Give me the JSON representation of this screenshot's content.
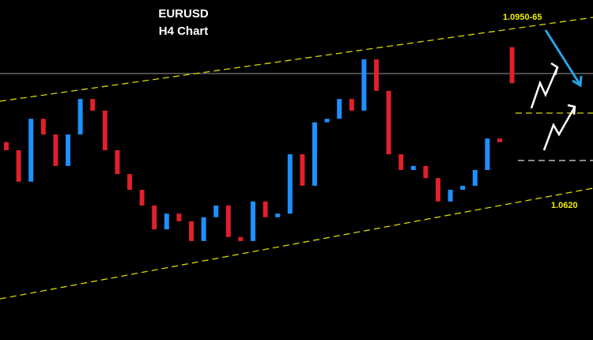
{
  "chart_data": {
    "type": "candlestick",
    "title": "EURUSD",
    "subtitle": "H4 Chart",
    "annotations": [
      "1.0950-65",
      "1.0620"
    ],
    "open": [
      1.0717,
      1.0701,
      1.0639,
      1.0763,
      1.0732,
      1.067,
      1.0732,
      1.0802,
      1.0779,
      1.0701,
      1.0654,
      1.0623,
      1.0592,
      1.0545,
      1.0576,
      1.0561,
      1.0522,
      1.0569,
      1.0592,
      1.053,
      1.0522,
      1.06,
      1.0569,
      1.0576,
      1.0693,
      1.0631,
      1.0756,
      1.0763,
      1.0802,
      1.0779,
      1.088,
      1.0818,
      1.0693,
      1.0662,
      1.067,
      1.0646,
      1.06,
      1.0623,
      1.0631,
      1.0662,
      1.0724,
      1.0904
    ],
    "close": [
      1.0701,
      1.0639,
      1.0763,
      1.0732,
      1.067,
      1.0732,
      1.0802,
      1.0779,
      1.0701,
      1.0654,
      1.0623,
      1.0592,
      1.0545,
      1.0576,
      1.0561,
      1.0522,
      1.0569,
      1.0592,
      1.053,
      1.0522,
      1.06,
      1.0569,
      1.0576,
      1.0693,
      1.0631,
      1.0756,
      1.0763,
      1.0802,
      1.0779,
      1.088,
      1.0818,
      1.0693,
      1.0662,
      1.067,
      1.0646,
      1.06,
      1.0623,
      1.0631,
      1.0662,
      1.0724,
      1.0717,
      1.0833
    ],
    "up_color": "#1e90ff",
    "down_color": "#e0202a",
    "ylim": [
      1.0327,
      1.0997
    ],
    "grid": false
  }
}
